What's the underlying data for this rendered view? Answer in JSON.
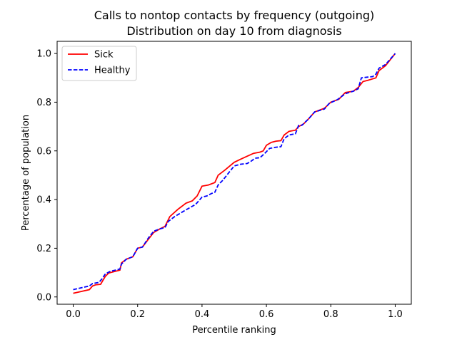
{
  "chart_data": {
    "type": "line",
    "title": "Calls to nontop contacts by frequency (outgoing)",
    "subtitle": "Distribution on day 10 from diagnosis",
    "xlabel": "Percentile ranking",
    "ylabel": "Percentage of population",
    "xlim": [
      -0.05,
      1.05
    ],
    "ylim": [
      -0.03,
      1.05
    ],
    "x_ticks": [
      0.0,
      0.2,
      0.4,
      0.6,
      0.8,
      1.0
    ],
    "x_tick_labels": [
      "0.0",
      "0.2",
      "0.4",
      "0.6",
      "0.8",
      "1.0"
    ],
    "y_ticks": [
      0.0,
      0.2,
      0.4,
      0.6,
      0.8,
      1.0
    ],
    "y_tick_labels": [
      "0.0",
      "0.2",
      "0.4",
      "0.6",
      "0.8",
      "1.0"
    ],
    "grid": false,
    "legend_position": "top-left",
    "series": [
      {
        "name": "Sick",
        "color": "#ff0000",
        "style": "solid",
        "points": [
          [
            0.0,
            0.015
          ],
          [
            0.05,
            0.03
          ],
          [
            0.06,
            0.045
          ],
          [
            0.07,
            0.05
          ],
          [
            0.085,
            0.052
          ],
          [
            0.1,
            0.085
          ],
          [
            0.11,
            0.098
          ],
          [
            0.13,
            0.105
          ],
          [
            0.145,
            0.11
          ],
          [
            0.15,
            0.14
          ],
          [
            0.165,
            0.155
          ],
          [
            0.185,
            0.165
          ],
          [
            0.2,
            0.2
          ],
          [
            0.215,
            0.205
          ],
          [
            0.235,
            0.24
          ],
          [
            0.25,
            0.265
          ],
          [
            0.27,
            0.28
          ],
          [
            0.285,
            0.29
          ],
          [
            0.3,
            0.33
          ],
          [
            0.325,
            0.36
          ],
          [
            0.35,
            0.385
          ],
          [
            0.37,
            0.395
          ],
          [
            0.385,
            0.415
          ],
          [
            0.4,
            0.455
          ],
          [
            0.42,
            0.46
          ],
          [
            0.44,
            0.47
          ],
          [
            0.45,
            0.5
          ],
          [
            0.47,
            0.52
          ],
          [
            0.5,
            0.553
          ],
          [
            0.52,
            0.566
          ],
          [
            0.54,
            0.578
          ],
          [
            0.56,
            0.59
          ],
          [
            0.58,
            0.595
          ],
          [
            0.59,
            0.6
          ],
          [
            0.6,
            0.623
          ],
          [
            0.615,
            0.635
          ],
          [
            0.63,
            0.64
          ],
          [
            0.645,
            0.642
          ],
          [
            0.655,
            0.665
          ],
          [
            0.67,
            0.68
          ],
          [
            0.69,
            0.685
          ],
          [
            0.7,
            0.7
          ],
          [
            0.715,
            0.71
          ],
          [
            0.73,
            0.73
          ],
          [
            0.75,
            0.76
          ],
          [
            0.78,
            0.775
          ],
          [
            0.8,
            0.8
          ],
          [
            0.825,
            0.812
          ],
          [
            0.845,
            0.84
          ],
          [
            0.87,
            0.845
          ],
          [
            0.885,
            0.86
          ],
          [
            0.9,
            0.885
          ],
          [
            0.915,
            0.89
          ],
          [
            0.94,
            0.9
          ],
          [
            0.95,
            0.93
          ],
          [
            0.97,
            0.95
          ],
          [
            1.0,
            1.0
          ]
        ]
      },
      {
        "name": "Healthy",
        "color": "#0000ff",
        "style": "dashed",
        "points": [
          [
            0.0,
            0.03
          ],
          [
            0.05,
            0.045
          ],
          [
            0.06,
            0.055
          ],
          [
            0.08,
            0.06
          ],
          [
            0.09,
            0.075
          ],
          [
            0.1,
            0.095
          ],
          [
            0.115,
            0.105
          ],
          [
            0.13,
            0.11
          ],
          [
            0.145,
            0.115
          ],
          [
            0.15,
            0.135
          ],
          [
            0.165,
            0.155
          ],
          [
            0.185,
            0.165
          ],
          [
            0.2,
            0.2
          ],
          [
            0.215,
            0.205
          ],
          [
            0.235,
            0.245
          ],
          [
            0.25,
            0.27
          ],
          [
            0.27,
            0.28
          ],
          [
            0.285,
            0.285
          ],
          [
            0.295,
            0.31
          ],
          [
            0.315,
            0.33
          ],
          [
            0.34,
            0.35
          ],
          [
            0.36,
            0.365
          ],
          [
            0.38,
            0.38
          ],
          [
            0.4,
            0.41
          ],
          [
            0.415,
            0.415
          ],
          [
            0.43,
            0.425
          ],
          [
            0.44,
            0.43
          ],
          [
            0.45,
            0.46
          ],
          [
            0.465,
            0.48
          ],
          [
            0.48,
            0.505
          ],
          [
            0.5,
            0.538
          ],
          [
            0.52,
            0.545
          ],
          [
            0.54,
            0.548
          ],
          [
            0.55,
            0.555
          ],
          [
            0.565,
            0.57
          ],
          [
            0.58,
            0.572
          ],
          [
            0.595,
            0.59
          ],
          [
            0.61,
            0.61
          ],
          [
            0.63,
            0.615
          ],
          [
            0.645,
            0.617
          ],
          [
            0.655,
            0.65
          ],
          [
            0.67,
            0.665
          ],
          [
            0.69,
            0.67
          ],
          [
            0.7,
            0.705
          ],
          [
            0.71,
            0.705
          ],
          [
            0.73,
            0.73
          ],
          [
            0.75,
            0.76
          ],
          [
            0.78,
            0.772
          ],
          [
            0.795,
            0.795
          ],
          [
            0.82,
            0.81
          ],
          [
            0.845,
            0.835
          ],
          [
            0.87,
            0.845
          ],
          [
            0.885,
            0.855
          ],
          [
            0.895,
            0.9
          ],
          [
            0.915,
            0.903
          ],
          [
            0.93,
            0.905
          ],
          [
            0.94,
            0.915
          ],
          [
            0.95,
            0.94
          ],
          [
            0.97,
            0.955
          ],
          [
            1.0,
            1.0
          ]
        ]
      }
    ]
  }
}
